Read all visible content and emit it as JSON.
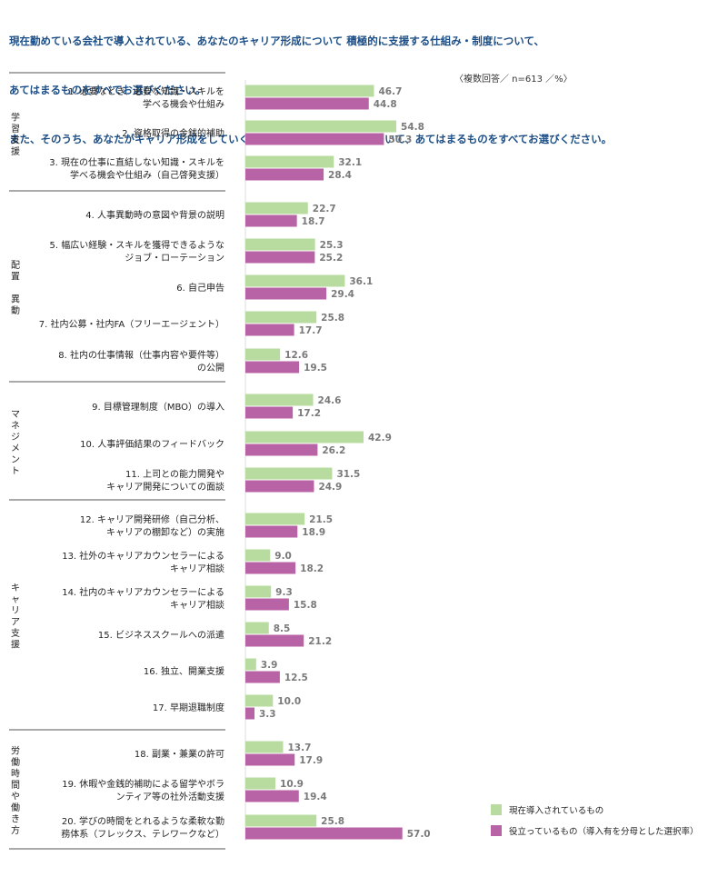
{
  "title_lines": [
    "現在勤めている会社で導入されている、あなたのキャリア形成について 積極的に支援する仕組み・制度について、",
    "あてはまるものをすべてお選びください。",
    "また、そのうち、あなたがキャリア形成をしていく上で役に立っているものについて、あてはまるものをすべてお選びください。"
  ],
  "note": "〈複数回答／ n=613 ／%〉",
  "colors": {
    "series_current": "#b8dca0",
    "series_useful": "#b863a6",
    "title": "#1d4f86"
  },
  "legend": {
    "current": "現在導入されているもの",
    "useful": "役立っているもの（導入有を分母とした選択率）"
  },
  "chart_data": {
    "type": "bar",
    "orientation": "horizontal",
    "xlim": [
      0,
      60
    ],
    "groups": [
      {
        "name": "学習支援",
        "items": [
          0,
          1,
          2
        ]
      },
      {
        "name": "配置 異動",
        "items": [
          3,
          4,
          5,
          6,
          7
        ]
      },
      {
        "name": "マネジメント",
        "items": [
          8,
          9,
          10
        ]
      },
      {
        "name": "キャリア支援",
        "items": [
          11,
          12,
          13,
          14,
          15,
          16
        ]
      },
      {
        "name": "労働時間や働き方",
        "items": [
          17,
          18,
          19
        ]
      }
    ],
    "categories": [
      [
        "1. 必要なとき、必要な知識・スキルを",
        "学べる機会や仕組み"
      ],
      [
        "2. 資格取得の金銭的補助"
      ],
      [
        "3. 現在の仕事に直結しない知識・スキルを",
        "学べる機会や仕組み（自己啓発支援）"
      ],
      [
        "4. 人事異動時の意図や背景の説明"
      ],
      [
        "5. 幅広い経験・スキルを獲得できるような",
        "ジョブ・ローテーション"
      ],
      [
        "6. 自己申告"
      ],
      [
        "7. 社内公募・社内FA（フリーエージェント）"
      ],
      [
        "8. 社内の仕事情報（仕事内容や要件等）",
        "の公開"
      ],
      [
        "9. 目標管理制度（MBO）の導入"
      ],
      [
        "10. 人事評価結果のフィードバック"
      ],
      [
        "11. 上司との能力開発や",
        "キャリア開発についての面談"
      ],
      [
        "12. キャリア開発研修（自己分析、",
        "キャリアの棚卸など）の実施"
      ],
      [
        "13. 社外のキャリアカウンセラーによる",
        "キャリア相談"
      ],
      [
        "14. 社内のキャリアカウンセラーによる",
        "キャリア相談"
      ],
      [
        "15. ビジネススクールへの派遣"
      ],
      [
        "16. 独立、開業支援"
      ],
      [
        "17. 早期退職制度"
      ],
      [
        "18. 副業・兼業の許可"
      ],
      [
        "19. 休暇や金銭的補助による留学やボラ",
        "ンティア等の社外活動支援"
      ],
      [
        "20. 学びの時間をとれるような柔軟な勤",
        "務体系（フレックス、テレワークなど）"
      ]
    ],
    "series": [
      {
        "name": "現在導入されているもの",
        "values": [
          46.7,
          54.8,
          32.1,
          22.7,
          25.3,
          36.1,
          25.8,
          12.6,
          24.6,
          42.9,
          31.5,
          21.5,
          9.0,
          9.3,
          8.5,
          3.9,
          10.0,
          13.7,
          10.9,
          25.8
        ]
      },
      {
        "name": "役立っているもの（導入有を分母とした選択率）",
        "values": [
          44.8,
          50.3,
          28.4,
          18.7,
          25.2,
          29.4,
          17.7,
          19.5,
          17.2,
          26.2,
          24.9,
          18.9,
          18.2,
          15.8,
          21.2,
          12.5,
          3.3,
          17.9,
          19.4,
          57.0
        ]
      }
    ]
  }
}
